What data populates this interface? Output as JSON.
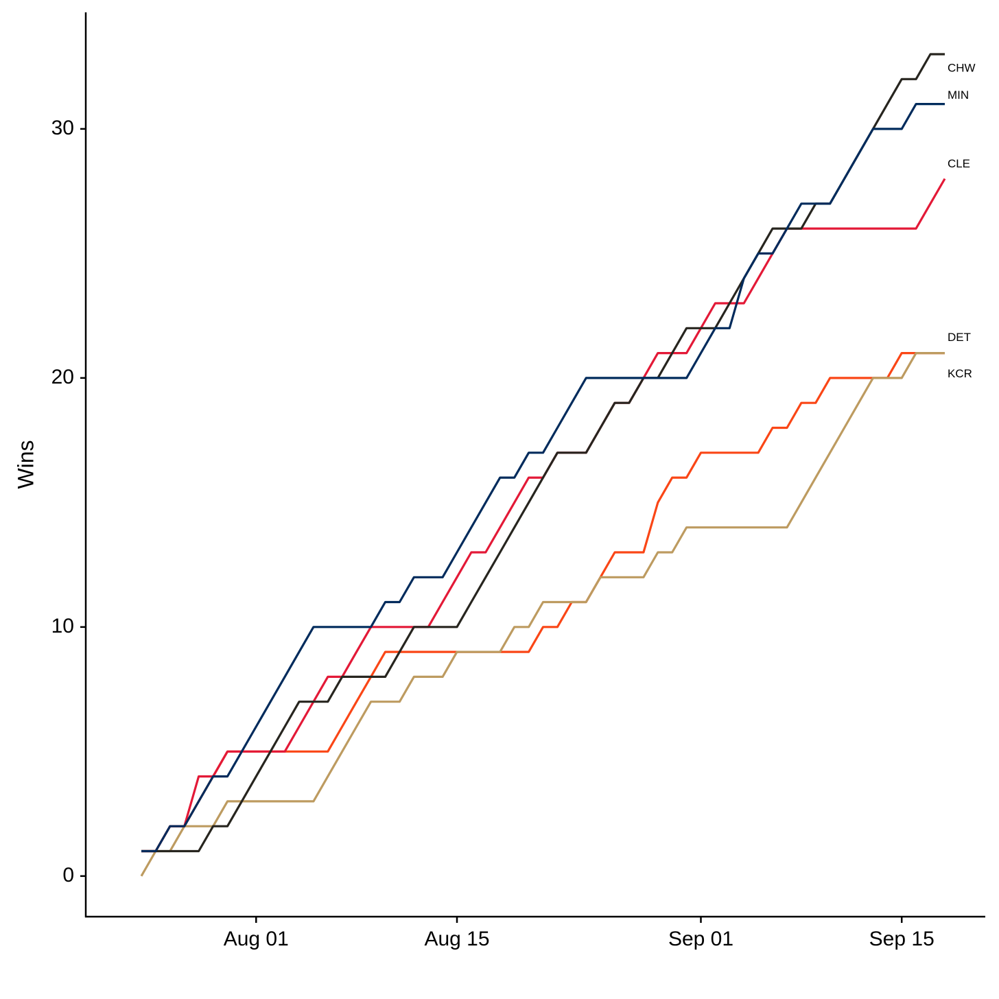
{
  "chart_data": {
    "type": "line",
    "y_label": "Wins",
    "x": [
      "Jul 24",
      "Jul 25",
      "Jul 26",
      "Jul 27",
      "Jul 28",
      "Jul 29",
      "Jul 30",
      "Jul 31",
      "Aug 01",
      "Aug 02",
      "Aug 03",
      "Aug 04",
      "Aug 05",
      "Aug 06",
      "Aug 07",
      "Aug 08",
      "Aug 09",
      "Aug 10",
      "Aug 11",
      "Aug 12",
      "Aug 13",
      "Aug 14",
      "Aug 15",
      "Aug 16",
      "Aug 17",
      "Aug 18",
      "Aug 19",
      "Aug 20",
      "Aug 21",
      "Aug 22",
      "Aug 23",
      "Aug 24",
      "Aug 25",
      "Aug 26",
      "Aug 27",
      "Aug 28",
      "Aug 29",
      "Aug 30",
      "Aug 31",
      "Sep 01",
      "Sep 02",
      "Sep 03",
      "Sep 04",
      "Sep 05",
      "Sep 06",
      "Sep 07",
      "Sep 08",
      "Sep 09",
      "Sep 10",
      "Sep 11",
      "Sep 12",
      "Sep 13",
      "Sep 14",
      "Sep 15",
      "Sep 16",
      "Sep 17",
      "Sep 18"
    ],
    "xticks": [
      "Aug 01",
      "Aug 15",
      "Sep 01",
      "Sep 15"
    ],
    "ylim": [
      -1.63,
      34.68
    ],
    "yticks": [
      0,
      10,
      20,
      30
    ],
    "series": [
      {
        "name": "DET",
        "color": "#fa4616",
        "values": [
          1,
          1,
          2,
          2,
          3,
          4,
          5,
          5,
          5,
          5,
          5,
          5,
          5,
          5,
          6,
          7,
          8,
          9,
          9,
          9,
          9,
          9,
          9,
          9,
          9,
          9,
          9,
          9,
          10,
          10,
          11,
          11,
          12,
          13,
          13,
          13,
          15,
          16,
          16,
          17,
          17,
          17,
          17,
          17,
          18,
          18,
          19,
          19,
          20,
          20,
          20,
          20,
          20,
          21,
          21,
          21,
          21
        ]
      },
      {
        "name": "KCR",
        "color": "#bd9b60",
        "values": [
          0,
          1,
          1,
          2,
          2,
          2,
          3,
          3,
          3,
          3,
          3,
          3,
          3,
          4,
          5,
          6,
          7,
          7,
          7,
          8,
          8,
          8,
          9,
          9,
          9,
          9,
          10,
          10,
          11,
          11,
          11,
          11,
          12,
          12,
          12,
          12,
          13,
          13,
          14,
          14,
          14,
          14,
          14,
          14,
          14,
          14,
          15,
          16,
          17,
          18,
          19,
          20,
          20,
          20,
          21,
          21,
          21
        ]
      },
      {
        "name": "CLE",
        "color": "#e31937",
        "values": [
          1,
          1,
          2,
          2,
          4,
          4,
          5,
          5,
          5,
          5,
          5,
          6,
          7,
          8,
          8,
          9,
          10,
          10,
          10,
          10,
          10,
          11,
          12,
          13,
          13,
          14,
          15,
          16,
          16,
          17,
          17,
          17,
          18,
          19,
          19,
          20,
          21,
          21,
          21,
          22,
          23,
          23,
          23,
          24,
          25,
          26,
          26,
          26,
          26,
          26,
          26,
          26,
          26,
          26,
          26,
          27,
          28
        ]
      },
      {
        "name": "CHW",
        "color": "#27251f",
        "values": [
          1,
          1,
          1,
          1,
          1,
          2,
          2,
          3,
          4,
          5,
          6,
          7,
          7,
          7,
          8,
          8,
          8,
          8,
          9,
          10,
          10,
          10,
          10,
          11,
          12,
          13,
          14,
          15,
          16,
          17,
          17,
          17,
          18,
          19,
          19,
          20,
          20,
          21,
          22,
          22,
          22,
          23,
          24,
          25,
          26,
          26,
          26,
          27,
          27,
          28,
          29,
          30,
          31,
          32,
          32,
          33,
          33
        ]
      },
      {
        "name": "MIN",
        "color": "#002b5c",
        "values": [
          1,
          1,
          2,
          2,
          3,
          4,
          4,
          5,
          6,
          7,
          8,
          9,
          10,
          10,
          10,
          10,
          10,
          11,
          11,
          12,
          12,
          12,
          13,
          14,
          15,
          16,
          16,
          17,
          17,
          18,
          19,
          20,
          20,
          20,
          20,
          20,
          20,
          20,
          20,
          21,
          22,
          22,
          24,
          25,
          25,
          26,
          27,
          27,
          27,
          28,
          29,
          30,
          30,
          30,
          31,
          31,
          31
        ]
      }
    ]
  }
}
